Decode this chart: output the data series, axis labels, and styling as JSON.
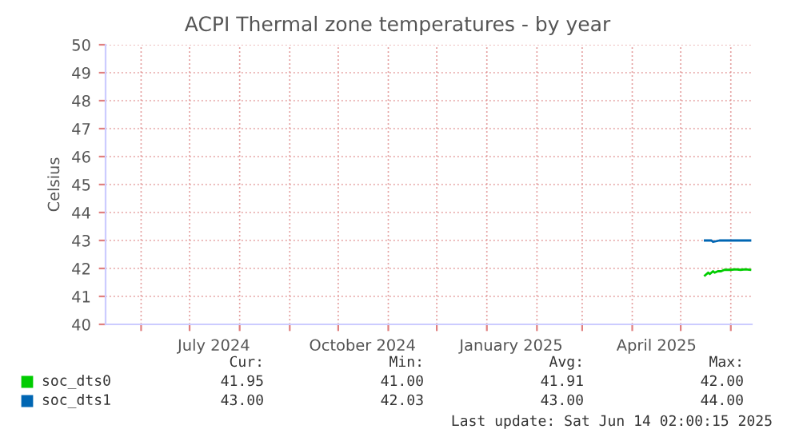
{
  "chart_data": {
    "type": "line",
    "title": "ACPI Thermal zone temperatures - by year",
    "ylabel": "Celsius",
    "xlim": [
      "2024-05-10",
      "2025-06-14"
    ],
    "ylim": [
      40,
      50
    ],
    "yticks": [
      40,
      41,
      42,
      43,
      44,
      45,
      46,
      47,
      48,
      49,
      50
    ],
    "xticks": [
      {
        "value": "2024-06-01",
        "label": null
      },
      {
        "value": "2024-07-01",
        "label": null
      },
      {
        "value": "2024-07-16",
        "label": "July 2024"
      },
      {
        "value": "2024-08-01",
        "label": null
      },
      {
        "value": "2024-09-01",
        "label": null
      },
      {
        "value": "2024-10-01",
        "label": null
      },
      {
        "value": "2024-10-16",
        "label": "October 2024"
      },
      {
        "value": "2024-11-01",
        "label": null
      },
      {
        "value": "2024-12-01",
        "label": null
      },
      {
        "value": "2025-01-01",
        "label": null
      },
      {
        "value": "2025-01-16",
        "label": "January 2025"
      },
      {
        "value": "2025-02-01",
        "label": null
      },
      {
        "value": "2025-03-01",
        "label": null
      },
      {
        "value": "2025-04-01",
        "label": null
      },
      {
        "value": "2025-04-16",
        "label": "April 2025"
      },
      {
        "value": "2025-05-01",
        "label": null
      },
      {
        "value": "2025-06-01",
        "label": null
      }
    ],
    "grid": true,
    "legend": "bottom",
    "series": [
      {
        "name": "soc_dts0",
        "color": "#00cc00",
        "x": [
          "2025-05-16",
          "2025-05-18",
          "2025-05-19",
          "2025-05-21",
          "2025-05-22",
          "2025-05-24",
          "2025-05-26",
          "2025-05-28",
          "2025-05-30",
          "2025-06-01",
          "2025-06-04",
          "2025-06-07",
          "2025-06-10",
          "2025-06-13"
        ],
        "values": [
          41.75,
          41.85,
          41.8,
          41.9,
          41.85,
          41.9,
          41.9,
          41.95,
          41.95,
          41.95,
          41.97,
          41.95,
          41.97,
          41.95
        ]
      },
      {
        "name": "soc_dts1",
        "color": "#0066b3",
        "x": [
          "2025-05-16",
          "2025-05-20",
          "2025-05-21",
          "2025-05-25",
          "2025-06-01",
          "2025-06-07",
          "2025-06-13"
        ],
        "values": [
          43.0,
          43.0,
          42.95,
          43.0,
          43.0,
          43.0,
          43.0
        ]
      }
    ],
    "annotations": [
      "Cur:",
      "Min:",
      "Avg:",
      "Max:",
      "41.95",
      "41.00",
      "41.91",
      "42.00",
      "43.00",
      "42.03",
      "43.00",
      "44.00",
      "Last update: Sat Jun 14 02:00:15 2025"
    ]
  }
}
